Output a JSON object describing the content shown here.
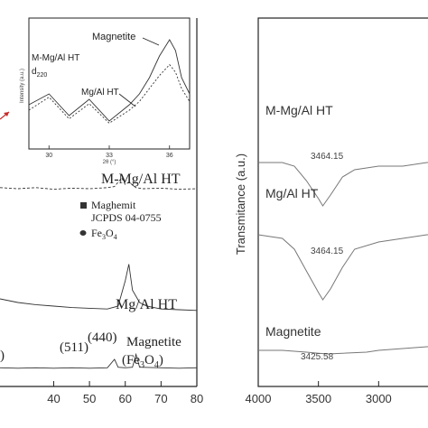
{
  "chart_data": [
    {
      "type": "line",
      "panel": "XRD",
      "xlim": [
        25,
        80
      ],
      "xticks": [
        "40",
        "50",
        "60",
        "70",
        "80"
      ],
      "series": [
        {
          "name": "M-Mg/Al HT",
          "x": [
            25,
            30,
            35,
            40,
            45,
            50,
            55,
            57,
            59,
            60,
            61,
            63,
            65,
            70,
            75,
            80
          ],
          "y": [
            0.12,
            0.1,
            0.12,
            0.09,
            0.11,
            0.1,
            0.12,
            0.14,
            0.3,
            0.18,
            0.22,
            0.12,
            0.1,
            0.11,
            0.09,
            0.1
          ]
        },
        {
          "name": "Mg/Al HT",
          "x": [
            25,
            30,
            35,
            40,
            45,
            50,
            55,
            58,
            60,
            61,
            62,
            64,
            66,
            70,
            75,
            80
          ],
          "y": [
            0.3,
            0.25,
            0.22,
            0.2,
            0.18,
            0.17,
            0.16,
            0.2,
            0.55,
            0.78,
            0.42,
            0.25,
            0.2,
            0.16,
            0.15,
            0.14
          ]
        },
        {
          "name": "Magnetite (Fe3O4)",
          "x": [
            25,
            30,
            35,
            40,
            45,
            50,
            55,
            57,
            58,
            60,
            62,
            63,
            64,
            70,
            75,
            80
          ],
          "y": [
            0.05,
            0.04,
            0.05,
            0.04,
            0.05,
            0.04,
            0.05,
            0.22,
            0.06,
            0.05,
            0.06,
            0.32,
            0.06,
            0.05,
            0.04,
            0.05
          ]
        }
      ],
      "labels": {
        "m_mgal": "M-Mg/Al HT",
        "mgal": "Mg/Al HT",
        "magnetite_line1": "Magnetite",
        "magnetite_line2": "(Fe",
        "magnetite_sub": "3",
        "magnetite_line3": "O",
        "magnetite_sub2": "4",
        "magnetite_close": ")",
        "peak_open": ")",
        "peak_511": "(511)",
        "peak_440": "(440)"
      },
      "legend": {
        "square_label": "Maghemit",
        "square_ref": "JCPDS 04-0755",
        "circle_label": "Fe",
        "circle_sub": "3",
        "circle_tail": "O",
        "circle_sub2": "4"
      },
      "inset": {
        "xlim": [
          29,
          37
        ],
        "xticks": [
          "30",
          "33",
          "36"
        ],
        "xlabel": "2θ (°)",
        "ylabel": "Intensity (a.u.)",
        "series": [
          {
            "name": "Magnetite",
            "x": [
              29,
              30,
              31,
              32,
              33,
              34,
              34.5,
              35,
              35.5,
              36,
              36.3,
              36.6,
              37
            ],
            "y": [
              0.35,
              0.45,
              0.25,
              0.4,
              0.2,
              0.35,
              0.45,
              0.6,
              0.8,
              0.95,
              0.85,
              0.6,
              0.45
            ]
          },
          {
            "name": "Mg/Al HT",
            "x": [
              29,
              30,
              31,
              32,
              33,
              34,
              34.5,
              35,
              35.5,
              36,
              36.3,
              36.6,
              37
            ],
            "y": [
              0.3,
              0.42,
              0.22,
              0.36,
              0.18,
              0.3,
              0.38,
              0.5,
              0.62,
              0.72,
              0.65,
              0.5,
              0.38
            ]
          }
        ],
        "labels": {
          "magnetite": "Magnetite",
          "m_mgal": "M-Mg/Al HT",
          "d_label": "d",
          "d_sub": "220",
          "mgal": "Mg/Al HT"
        }
      }
    },
    {
      "type": "line",
      "panel": "FTIR",
      "xlim": [
        4000,
        2500
      ],
      "xticks": [
        "4000",
        "3500",
        "3000"
      ],
      "ylabel": "Transmitance (a.u.)",
      "series": [
        {
          "name": "M-Mg/Al HT",
          "x": [
            4000,
            3800,
            3700,
            3600,
            3500,
            3464,
            3400,
            3300,
            3200,
            3000,
            2800,
            2600,
            2500
          ],
          "y": [
            0.62,
            0.62,
            0.61,
            0.57,
            0.52,
            0.5,
            0.53,
            0.58,
            0.6,
            0.61,
            0.61,
            0.62,
            0.62
          ]
        },
        {
          "name": "Mg/Al HT",
          "x": [
            4000,
            3800,
            3700,
            3600,
            3500,
            3464,
            3400,
            3300,
            3200,
            3000,
            2800,
            2600,
            2500
          ],
          "y": [
            0.42,
            0.41,
            0.38,
            0.32,
            0.26,
            0.24,
            0.27,
            0.33,
            0.38,
            0.4,
            0.41,
            0.42,
            0.42
          ]
        },
        {
          "name": "Magnetite",
          "x": [
            4000,
            3800,
            3600,
            3500,
            3425,
            3300,
            3100,
            3000,
            2800,
            2600,
            2500
          ],
          "y": [
            0.1,
            0.1,
            0.095,
            0.092,
            0.09,
            0.092,
            0.095,
            0.1,
            0.105,
            0.11,
            0.11
          ]
        }
      ],
      "labels": {
        "m_mgal": "M-Mg/Al HT",
        "mgal": "Mg/Al HT",
        "magnetite": "Magnetite",
        "peak1": "3464.15",
        "peak2": "3464.15",
        "peak3": "3425.58"
      }
    }
  ]
}
